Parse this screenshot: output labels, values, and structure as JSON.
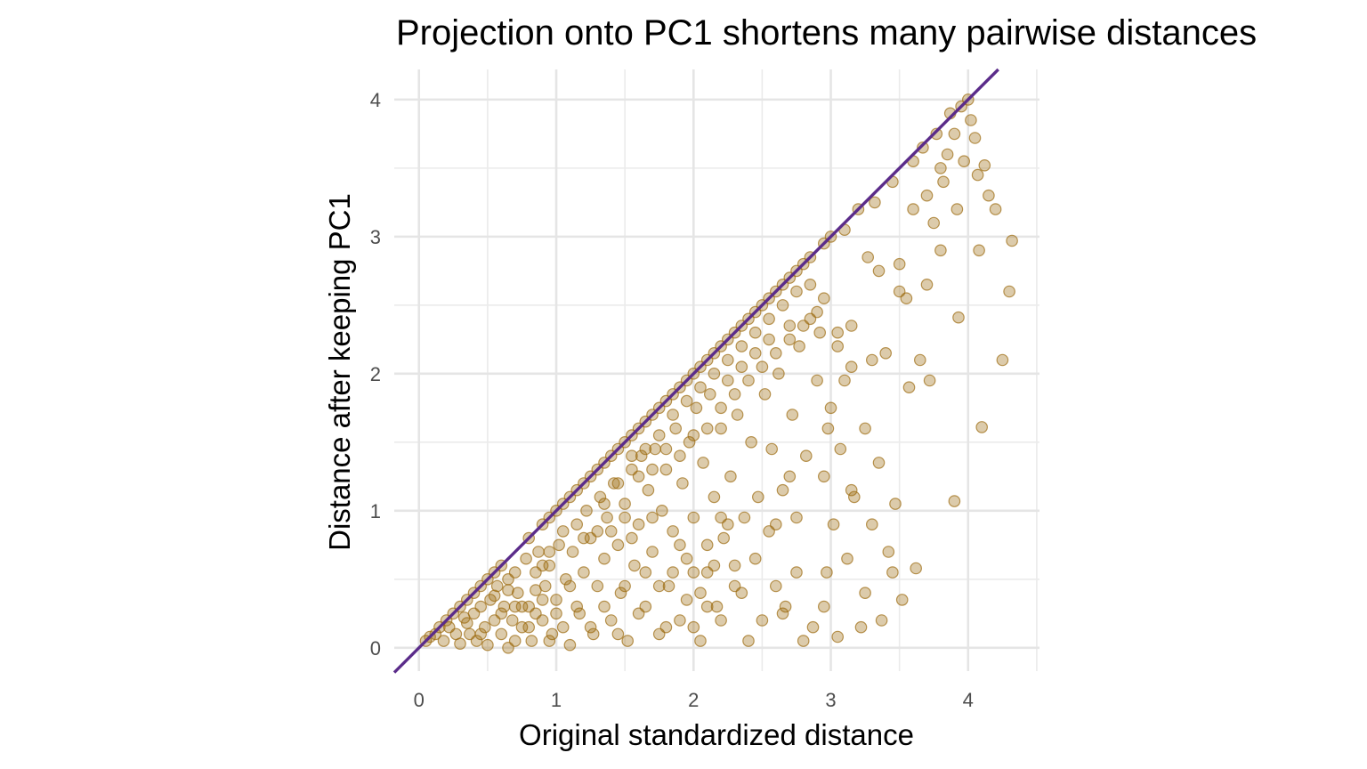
{
  "chart_data": {
    "type": "scatter",
    "title": "Projection onto PC1 shortens many pairwise distances",
    "xlabel": "Original standardized distance",
    "ylabel": "Distance after keeping PC1",
    "xlim": [
      -0.18,
      4.52
    ],
    "ylim": [
      -0.17,
      4.22
    ],
    "x_ticks": [
      0,
      1,
      2,
      3,
      4
    ],
    "y_ticks": [
      0,
      1,
      2,
      3,
      4
    ],
    "grid": true,
    "reference_line": {
      "kind": "identity",
      "slope": 1,
      "intercept": 0,
      "color": "#5b2c8a"
    },
    "point_color": "#9c6b0f",
    "point_alpha": 0.35,
    "series": [
      {
        "points": [
          [
            0.05,
            0.05
          ],
          [
            0.08,
            0.08
          ],
          [
            0.12,
            0.1
          ],
          [
            0.15,
            0.15
          ],
          [
            0.18,
            0.05
          ],
          [
            0.2,
            0.2
          ],
          [
            0.22,
            0.15
          ],
          [
            0.25,
            0.25
          ],
          [
            0.27,
            0.1
          ],
          [
            0.3,
            0.3
          ],
          [
            0.3,
            0.03
          ],
          [
            0.33,
            0.22
          ],
          [
            0.35,
            0.35
          ],
          [
            0.37,
            0.1
          ],
          [
            0.4,
            0.4
          ],
          [
            0.4,
            0.25
          ],
          [
            0.42,
            0.05
          ],
          [
            0.45,
            0.45
          ],
          [
            0.45,
            0.3
          ],
          [
            0.48,
            0.15
          ],
          [
            0.5,
            0.5
          ],
          [
            0.5,
            0.02
          ],
          [
            0.52,
            0.35
          ],
          [
            0.55,
            0.55
          ],
          [
            0.55,
            0.2
          ],
          [
            0.57,
            0.45
          ],
          [
            0.6,
            0.6
          ],
          [
            0.6,
            0.1
          ],
          [
            0.62,
            0.3
          ],
          [
            0.65,
            0.5
          ],
          [
            0.65,
            0.0
          ],
          [
            0.68,
            0.2
          ],
          [
            0.7,
            0.55
          ],
          [
            0.72,
            0.4
          ],
          [
            0.75,
            0.15
          ],
          [
            0.78,
            0.65
          ],
          [
            0.8,
            0.8
          ],
          [
            0.8,
            0.3
          ],
          [
            0.82,
            0.05
          ],
          [
            0.85,
            0.55
          ],
          [
            0.87,
            0.7
          ],
          [
            0.9,
            0.9
          ],
          [
            0.9,
            0.2
          ],
          [
            0.92,
            0.45
          ],
          [
            0.95,
            0.95
          ],
          [
            0.95,
            0.6
          ],
          [
            0.97,
            0.1
          ],
          [
            1.0,
            1.0
          ],
          [
            1.0,
            0.35
          ],
          [
            1.02,
            0.75
          ],
          [
            1.05,
            1.05
          ],
          [
            1.05,
            0.85
          ],
          [
            1.07,
            0.5
          ],
          [
            1.1,
            1.1
          ],
          [
            1.1,
            0.02
          ],
          [
            1.12,
            0.7
          ],
          [
            1.15,
            1.15
          ],
          [
            1.15,
            0.9
          ],
          [
            1.17,
            0.25
          ],
          [
            1.2,
            1.2
          ],
          [
            1.2,
            0.55
          ],
          [
            1.22,
            1.0
          ],
          [
            1.25,
            1.25
          ],
          [
            1.25,
            0.8
          ],
          [
            1.27,
            0.1
          ],
          [
            1.3,
            1.3
          ],
          [
            1.3,
            0.45
          ],
          [
            1.32,
            1.1
          ],
          [
            1.35,
            1.35
          ],
          [
            1.35,
            0.65
          ],
          [
            1.37,
            0.95
          ],
          [
            1.4,
            1.4
          ],
          [
            1.4,
            0.2
          ],
          [
            1.42,
            1.2
          ],
          [
            1.45,
            1.45
          ],
          [
            1.45,
            0.75
          ],
          [
            1.47,
            0.4
          ],
          [
            1.5,
            1.5
          ],
          [
            1.5,
            1.05
          ],
          [
            1.52,
            0.05
          ],
          [
            1.55,
            1.55
          ],
          [
            1.55,
            1.3
          ],
          [
            1.57,
            0.6
          ],
          [
            1.6,
            1.6
          ],
          [
            1.6,
            0.9
          ],
          [
            1.62,
            1.4
          ],
          [
            1.65,
            1.65
          ],
          [
            1.65,
            0.3
          ],
          [
            1.67,
            1.15
          ],
          [
            1.7,
            1.7
          ],
          [
            1.7,
            0.7
          ],
          [
            1.72,
            1.45
          ],
          [
            1.75,
            1.75
          ],
          [
            1.75,
            0.1
          ],
          [
            1.77,
            1.0
          ],
          [
            1.8,
            1.8
          ],
          [
            1.8,
            1.3
          ],
          [
            1.82,
            0.45
          ],
          [
            1.85,
            1.85
          ],
          [
            1.85,
            0.85
          ],
          [
            1.87,
            1.6
          ],
          [
            1.9,
            1.9
          ],
          [
            1.9,
            0.2
          ],
          [
            1.92,
            1.2
          ],
          [
            1.95,
            1.95
          ],
          [
            1.95,
            0.65
          ],
          [
            1.97,
            1.5
          ],
          [
            2.0,
            2.0
          ],
          [
            2.0,
            0.95
          ],
          [
            2.02,
            1.75
          ],
          [
            2.05,
            2.05
          ],
          [
            2.05,
            0.05
          ],
          [
            2.07,
            1.35
          ],
          [
            2.1,
            2.1
          ],
          [
            2.1,
            0.55
          ],
          [
            2.12,
            1.85
          ],
          [
            2.15,
            2.15
          ],
          [
            2.15,
            1.1
          ],
          [
            2.17,
            0.3
          ],
          [
            2.2,
            2.2
          ],
          [
            2.2,
            1.6
          ],
          [
            2.22,
            0.8
          ],
          [
            2.25,
            2.25
          ],
          [
            2.25,
            1.95
          ],
          [
            2.27,
            1.25
          ],
          [
            2.3,
            2.3
          ],
          [
            2.3,
            0.45
          ],
          [
            2.32,
            1.7
          ],
          [
            2.35,
            2.35
          ],
          [
            2.35,
            2.05
          ],
          [
            2.37,
            0.95
          ],
          [
            2.4,
            2.4
          ],
          [
            2.4,
            0.05
          ],
          [
            2.42,
            1.5
          ],
          [
            2.45,
            2.45
          ],
          [
            2.45,
            2.15
          ],
          [
            2.47,
            1.1
          ],
          [
            2.5,
            2.5
          ],
          [
            2.5,
            0.2
          ],
          [
            2.52,
            1.85
          ],
          [
            2.55,
            2.55
          ],
          [
            2.55,
            2.25
          ],
          [
            2.57,
            1.45
          ],
          [
            2.6,
            2.6
          ],
          [
            2.6,
            0.9
          ],
          [
            2.62,
            2.0
          ],
          [
            2.65,
            2.65
          ],
          [
            2.65,
            1.15
          ],
          [
            2.67,
            0.3
          ],
          [
            2.7,
            2.7
          ],
          [
            2.7,
            2.35
          ],
          [
            2.72,
            1.7
          ],
          [
            2.75,
            2.75
          ],
          [
            2.75,
            0.95
          ],
          [
            2.77,
            2.2
          ],
          [
            2.8,
            2.8
          ],
          [
            2.8,
            0.05
          ],
          [
            2.82,
            1.4
          ],
          [
            2.85,
            2.85
          ],
          [
            2.85,
            2.4
          ],
          [
            2.87,
            0.15
          ],
          [
            2.9,
            1.95
          ],
          [
            2.92,
            2.3
          ],
          [
            2.95,
            2.95
          ],
          [
            2.95,
            1.25
          ],
          [
            2.97,
            0.55
          ],
          [
            3.0,
            3.0
          ],
          [
            3.0,
            1.75
          ],
          [
            3.02,
            0.9
          ],
          [
            3.05,
            2.2
          ],
          [
            3.07,
            1.45
          ],
          [
            3.1,
            3.05
          ],
          [
            3.12,
            0.65
          ],
          [
            3.15,
            2.05
          ],
          [
            3.17,
            1.1
          ],
          [
            3.2,
            3.2
          ],
          [
            3.22,
            0.15
          ],
          [
            3.25,
            1.6
          ],
          [
            3.27,
            2.85
          ],
          [
            3.3,
            0.9
          ],
          [
            3.32,
            3.25
          ],
          [
            3.35,
            1.35
          ],
          [
            3.37,
            0.2
          ],
          [
            3.4,
            2.15
          ],
          [
            3.42,
            0.7
          ],
          [
            3.45,
            3.4
          ],
          [
            3.47,
            1.05
          ],
          [
            3.5,
            2.8
          ],
          [
            3.52,
            0.35
          ],
          [
            3.55,
            2.55
          ],
          [
            3.57,
            1.9
          ],
          [
            3.6,
            3.55
          ],
          [
            3.62,
            0.58
          ],
          [
            3.65,
            2.1
          ],
          [
            3.67,
            3.65
          ],
          [
            3.7,
            2.65
          ],
          [
            3.72,
            1.95
          ],
          [
            3.75,
            3.1
          ],
          [
            3.77,
            3.75
          ],
          [
            3.8,
            2.9
          ],
          [
            3.82,
            3.4
          ],
          [
            3.85,
            3.6
          ],
          [
            3.87,
            3.9
          ],
          [
            3.9,
            1.07
          ],
          [
            3.92,
            3.2
          ],
          [
            3.95,
            3.95
          ],
          [
            3.97,
            3.55
          ],
          [
            4.0,
            4.0
          ],
          [
            4.02,
            3.85
          ],
          [
            4.05,
            3.72
          ],
          [
            4.07,
            3.45
          ],
          [
            4.1,
            1.61
          ],
          [
            4.12,
            3.52
          ],
          [
            4.15,
            3.3
          ],
          [
            4.2,
            3.2
          ],
          [
            4.25,
            2.1
          ],
          [
            4.3,
            2.6
          ],
          [
            4.32,
            2.97
          ],
          [
            4.08,
            2.9
          ],
          [
            3.93,
            2.41
          ],
          [
            3.1,
            1.95
          ],
          [
            3.35,
            2.75
          ],
          [
            2.98,
            1.6
          ],
          [
            3.05,
            0.08
          ],
          [
            2.95,
            0.3
          ],
          [
            3.45,
            0.55
          ],
          [
            3.25,
            0.4
          ],
          [
            2.75,
            0.55
          ],
          [
            2.7,
            1.25
          ],
          [
            3.15,
            1.15
          ],
          [
            1.25,
            0.15
          ],
          [
            1.3,
            0.85
          ],
          [
            1.45,
            0.1
          ],
          [
            1.6,
            0.25
          ],
          [
            1.7,
            0.95
          ],
          [
            1.75,
            0.45
          ],
          [
            1.8,
            0.15
          ],
          [
            1.95,
            0.35
          ],
          [
            2.0,
            0.15
          ],
          [
            2.05,
            0.4
          ],
          [
            2.1,
            0.75
          ],
          [
            2.15,
            0.6
          ],
          [
            2.2,
            0.2
          ],
          [
            2.25,
            0.9
          ],
          [
            2.3,
            0.6
          ],
          [
            2.35,
            0.4
          ],
          [
            2.45,
            0.65
          ],
          [
            2.55,
            0.85
          ],
          [
            2.6,
            0.45
          ],
          [
            2.65,
            0.25
          ],
          [
            0.7,
            0.05
          ],
          [
            0.75,
            0.3
          ],
          [
            0.85,
            0.25
          ],
          [
            0.9,
            0.6
          ],
          [
            0.95,
            0.05
          ],
          [
            1.0,
            0.25
          ],
          [
            1.05,
            0.15
          ],
          [
            1.1,
            0.45
          ],
          [
            1.15,
            0.3
          ],
          [
            1.2,
            0.8
          ],
          [
            1.35,
            0.3
          ],
          [
            1.4,
            0.85
          ],
          [
            1.5,
            0.45
          ],
          [
            1.55,
            0.8
          ],
          [
            1.65,
            0.55
          ],
          [
            1.85,
            0.55
          ],
          [
            1.9,
            0.75
          ],
          [
            2.0,
            0.55
          ],
          [
            2.1,
            0.3
          ],
          [
            2.2,
            0.95
          ],
          [
            0.35,
            0.18
          ],
          [
            0.45,
            0.1
          ],
          [
            0.55,
            0.38
          ],
          [
            0.6,
            0.25
          ],
          [
            0.65,
            0.42
          ],
          [
            0.7,
            0.3
          ],
          [
            0.8,
            0.15
          ],
          [
            0.85,
            0.42
          ],
          [
            0.9,
            0.35
          ],
          [
            0.95,
            0.7
          ],
          [
            1.35,
            1.05
          ],
          [
            1.45,
            1.2
          ],
          [
            1.5,
            0.95
          ],
          [
            1.55,
            1.4
          ],
          [
            1.6,
            1.25
          ],
          [
            1.65,
            1.45
          ],
          [
            1.7,
            1.3
          ],
          [
            1.75,
            1.55
          ],
          [
            1.8,
            1.45
          ],
          [
            1.85,
            1.7
          ],
          [
            1.9,
            1.4
          ],
          [
            1.95,
            1.8
          ],
          [
            2.0,
            1.55
          ],
          [
            2.05,
            1.9
          ],
          [
            2.1,
            1.6
          ],
          [
            2.15,
            2.0
          ],
          [
            2.2,
            1.75
          ],
          [
            2.25,
            2.1
          ],
          [
            2.3,
            1.85
          ],
          [
            2.35,
            2.2
          ],
          [
            2.4,
            1.95
          ],
          [
            2.45,
            2.3
          ],
          [
            2.5,
            2.05
          ],
          [
            2.55,
            2.4
          ],
          [
            2.6,
            2.15
          ],
          [
            2.65,
            2.5
          ],
          [
            2.7,
            2.25
          ],
          [
            2.75,
            2.6
          ],
          [
            2.8,
            2.35
          ],
          [
            2.85,
            2.65
          ],
          [
            2.9,
            2.45
          ],
          [
            2.95,
            2.55
          ],
          [
            3.05,
            2.3
          ],
          [
            3.15,
            2.35
          ],
          [
            3.3,
            2.1
          ],
          [
            3.5,
            2.6
          ],
          [
            3.6,
            3.2
          ],
          [
            3.7,
            3.3
          ],
          [
            3.8,
            3.5
          ],
          [
            3.9,
            3.75
          ]
        ]
      }
    ]
  }
}
